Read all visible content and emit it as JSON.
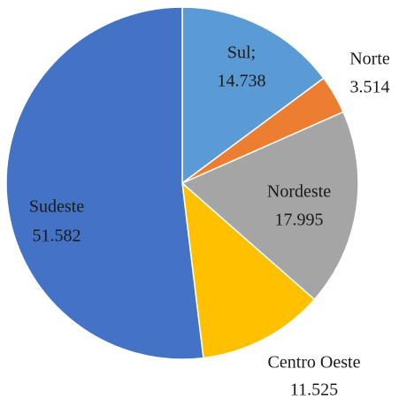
{
  "chart_data": {
    "type": "pie",
    "categories": [
      "Sul;",
      "Norte",
      "Nordeste",
      "Centro Oeste",
      "Sudeste"
    ],
    "values": [
      14.738,
      3.514,
      17.995,
      11.525,
      51.582
    ],
    "colors": [
      "#5b9bd5",
      "#ed7d31",
      "#a5a5a5",
      "#ffc000",
      "#4472c4"
    ]
  }
}
